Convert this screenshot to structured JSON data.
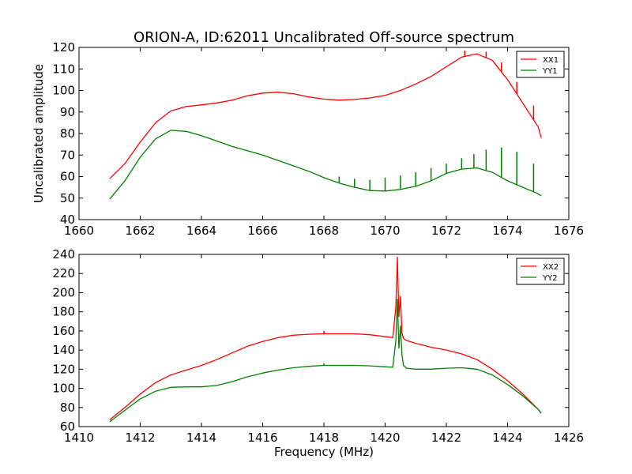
{
  "chart_data": [
    {
      "type": "line",
      "title": "ORION-A, ID:62011 Uncalibrated Off-source spectrum",
      "xlabel": "",
      "ylabel": "Uncalibrated amplitude",
      "xlim": [
        1660,
        1676
      ],
      "ylim": [
        40,
        120
      ],
      "xticks": [
        1660,
        1662,
        1664,
        1666,
        1668,
        1670,
        1672,
        1674,
        1676
      ],
      "yticks": [
        40,
        50,
        60,
        70,
        80,
        90,
        100,
        110,
        120
      ],
      "legend_position": "top-right",
      "grid": false,
      "series": [
        {
          "name": "XX1",
          "color": "#ff0000",
          "x": [
            1661.0,
            1661.5,
            1662.0,
            1662.5,
            1663.0,
            1663.5,
            1664.0,
            1664.5,
            1665.0,
            1665.5,
            1666.0,
            1666.5,
            1667.0,
            1667.5,
            1668.0,
            1668.5,
            1669.0,
            1669.5,
            1670.0,
            1670.5,
            1671.0,
            1671.5,
            1672.0,
            1672.5,
            1673.0,
            1673.5,
            1674.0,
            1674.5,
            1675.0,
            1675.1
          ],
          "y": [
            59,
            66,
            76,
            85,
            90.5,
            92.5,
            93.3,
            94.2,
            95.5,
            97.5,
            98.8,
            99.2,
            98.5,
            97,
            96,
            95.5,
            95.8,
            96.5,
            97.7,
            100,
            103,
            106.5,
            111,
            115.5,
            117,
            114,
            105,
            94,
            83,
            78
          ]
        },
        {
          "name": "YY1",
          "color": "#008000",
          "x": [
            1661.0,
            1661.5,
            1662.0,
            1662.5,
            1663.0,
            1663.5,
            1664.0,
            1664.5,
            1665.0,
            1665.5,
            1666.0,
            1666.5,
            1667.0,
            1667.5,
            1668.0,
            1668.5,
            1669.0,
            1669.5,
            1670.0,
            1670.5,
            1671.0,
            1671.5,
            1672.0,
            1672.5,
            1673.0,
            1673.5,
            1674.0,
            1674.5,
            1675.0,
            1675.1
          ],
          "y": [
            49.5,
            58,
            69,
            77.5,
            81.5,
            81,
            79,
            76.5,
            74,
            72,
            70,
            67.5,
            65,
            62.5,
            59.5,
            57,
            55,
            53.5,
            53.3,
            54,
            55.5,
            58,
            61.5,
            63.5,
            64,
            62,
            58,
            55,
            52,
            51
          ]
        }
      ],
      "spikes": [
        {
          "series": "XX1",
          "x": [
            1672.6,
            1673.3,
            1673.8,
            1674.3,
            1674.85
          ],
          "peak": [
            118.5,
            118,
            113,
            104,
            93
          ]
        },
        {
          "series": "YY1",
          "x": [
            1668.5,
            1669.0,
            1669.5,
            1670.0,
            1670.5,
            1671.0,
            1671.5,
            1672.0,
            1672.5,
            1672.9,
            1673.3,
            1673.8,
            1674.3,
            1674.85
          ],
          "peak": [
            60,
            59,
            58.5,
            59.5,
            60.5,
            62,
            64,
            66,
            68.5,
            70.5,
            72.5,
            73.5,
            71.5,
            66
          ]
        }
      ]
    },
    {
      "type": "line",
      "title": "",
      "xlabel": "Frequency (MHz)",
      "ylabel": "",
      "xlim": [
        1410,
        1426
      ],
      "ylim": [
        60,
        240
      ],
      "xticks": [
        1410,
        1412,
        1414,
        1416,
        1418,
        1420,
        1422,
        1424,
        1426
      ],
      "yticks": [
        60,
        80,
        100,
        120,
        140,
        160,
        180,
        200,
        220,
        240
      ],
      "legend_position": "top-right",
      "grid": false,
      "series": [
        {
          "name": "XX2",
          "color": "#ff0000",
          "x": [
            1411.0,
            1411.5,
            1412.0,
            1412.5,
            1413.0,
            1413.5,
            1414.0,
            1414.5,
            1415.0,
            1415.5,
            1416.0,
            1416.5,
            1417.0,
            1417.5,
            1418.0,
            1418.5,
            1419.0,
            1419.5,
            1420.0,
            1420.25,
            1420.35,
            1420.4,
            1420.45,
            1420.5,
            1420.55,
            1420.6,
            1420.7,
            1421.0,
            1421.5,
            1422.0,
            1422.5,
            1423.0,
            1423.5,
            1424.0,
            1424.5,
            1425.0,
            1425.1
          ],
          "y": [
            67,
            80,
            94,
            106,
            114,
            119,
            124,
            130,
            137,
            144,
            149,
            153,
            155.5,
            156.5,
            157,
            157,
            157,
            156,
            154,
            153,
            185,
            237,
            175,
            196,
            158,
            152,
            150,
            147,
            143,
            140,
            136,
            130,
            120,
            108,
            94,
            78,
            74
          ]
        },
        {
          "name": "YY2",
          "color": "#008000",
          "x": [
            1411.0,
            1411.5,
            1412.0,
            1412.5,
            1413.0,
            1413.5,
            1414.0,
            1414.5,
            1415.0,
            1415.5,
            1416.0,
            1416.5,
            1417.0,
            1417.5,
            1418.0,
            1418.5,
            1419.0,
            1419.5,
            1420.0,
            1420.25,
            1420.35,
            1420.4,
            1420.45,
            1420.5,
            1420.55,
            1420.6,
            1420.7,
            1421.0,
            1421.5,
            1422.0,
            1422.5,
            1423.0,
            1423.5,
            1424.0,
            1424.5,
            1425.0,
            1425.1
          ],
          "y": [
            65,
            77,
            89,
            97,
            101,
            101.5,
            101.5,
            103,
            107,
            112,
            116,
            119,
            121.5,
            123,
            124,
            124,
            124,
            123.5,
            122.5,
            122,
            150,
            193,
            142,
            165,
            135,
            124,
            121,
            120,
            120,
            121,
            121.5,
            120,
            114,
            104,
            92,
            78,
            74
          ]
        }
      ],
      "spikes": [
        {
          "series": "XX2",
          "x": [
            1418.0
          ],
          "peak": [
            160
          ]
        },
        {
          "series": "YY2",
          "x": [
            1418.0
          ],
          "peak": [
            126
          ]
        }
      ]
    }
  ]
}
